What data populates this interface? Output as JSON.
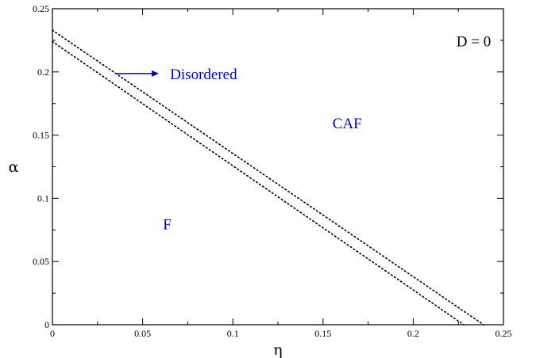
{
  "chart_data": {
    "type": "line",
    "xlabel": "η",
    "ylabel": "α",
    "xlim": [
      0,
      0.25
    ],
    "ylim": [
      0,
      0.25
    ],
    "x_ticks": [
      "0",
      "0.05",
      "0.1",
      "0.15",
      "0.2",
      "0.25"
    ],
    "y_ticks": [
      "0",
      "0.05",
      "0.1",
      "0.15",
      "0.2",
      "0.25"
    ],
    "grid": false,
    "series": [
      {
        "line_style": "dotted",
        "color": "#000000",
        "x": [
          0,
          0.239
        ],
        "y": [
          0.233,
          0
        ]
      },
      {
        "line_style": "dotted",
        "color": "#000000",
        "x": [
          0,
          0.228
        ],
        "y": [
          0.224,
          0
        ]
      }
    ],
    "annotations": [
      {
        "text": "D = 0",
        "x": 0.2335,
        "y": 0.2245,
        "color": "#000000"
      },
      {
        "text": "Disordered",
        "x": 0.0838,
        "y": 0.1987,
        "color": "#0000cc"
      },
      {
        "text": "CAF",
        "x": 0.1634,
        "y": 0.1597,
        "color": "#0000cc"
      },
      {
        "text": "F",
        "x": 0.0636,
        "y": 0.0799,
        "color": "#0000cc"
      }
    ],
    "arrow": {
      "from": [
        0.035,
        0.1987
      ],
      "to": [
        0.059,
        0.1987
      ],
      "color": "#0000cc"
    }
  }
}
